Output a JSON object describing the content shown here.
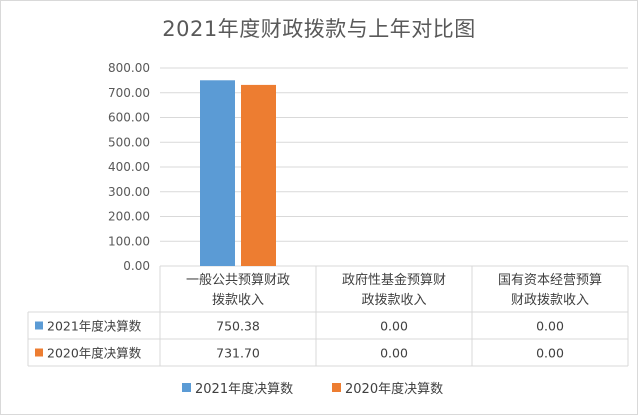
{
  "chart_data": {
    "type": "bar",
    "title": "2021年度财政拨款与上年对比图",
    "categories": [
      [
        "一般公共预算财政",
        "拨款收入"
      ],
      [
        "政府性基金预算财",
        "政拨款收入"
      ],
      [
        "国有资本经营预算",
        "财政拨款收入"
      ]
    ],
    "series": [
      {
        "name": "2021年度决算数",
        "color": "#5b9bd5",
        "values": [
          750.38,
          0.0,
          0.0
        ],
        "labels": [
          "750.38",
          "0.00",
          "0.00"
        ]
      },
      {
        "name": "2020年度决算数",
        "color": "#ed7d31",
        "values": [
          731.7,
          0.0,
          0.0
        ],
        "labels": [
          "731.70",
          "0.00",
          "0.00"
        ]
      }
    ],
    "ylim": [
      0,
      800
    ],
    "yticks": [
      "0.00",
      "100.00",
      "200.00",
      "300.00",
      "400.00",
      "500.00",
      "600.00",
      "700.00",
      "800.00"
    ],
    "grid": true,
    "data_table": true,
    "legend_position": "bottom"
  }
}
